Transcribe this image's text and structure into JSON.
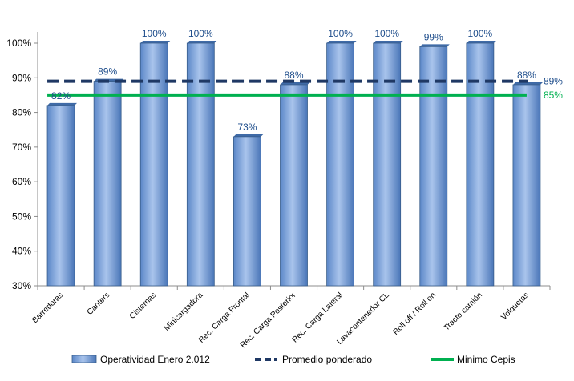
{
  "chart_data": {
    "type": "bar",
    "categories": [
      "Barredoras",
      "Canters",
      "Cisternas",
      "Minicargadora",
      "Rec. Carga Frontal",
      "Rec. Carga Posterior",
      "Rec. Carga Lateral",
      "Lavacontenedor CL",
      "Roll off / Roll on",
      "Tracto camión",
      "Volquetas"
    ],
    "series": [
      {
        "name": "Operatividad Enero 2.012",
        "type": "bar",
        "values": [
          82,
          89,
          100,
          100,
          73,
          88,
          100,
          100,
          99,
          100,
          88
        ],
        "color": "#4f81bd"
      },
      {
        "name": "Promedio ponderado",
        "type": "line",
        "style": "dashed",
        "value": 89,
        "color": "#1f3864"
      },
      {
        "name": "Minimo Cepis",
        "type": "line",
        "style": "solid",
        "value": 85,
        "color": "#00b050"
      }
    ],
    "data_labels": [
      "82%",
      "89%",
      "100%",
      "100%",
      "73%",
      "88%",
      "100%",
      "100%",
      "99%",
      "100%",
      "88%"
    ],
    "line_labels": {
      "promedio": "89%",
      "minimo": "85%"
    },
    "y_ticks": [
      "30%",
      "40%",
      "50%",
      "60%",
      "70%",
      "80%",
      "90%",
      "100%"
    ],
    "ylim": [
      30,
      100
    ],
    "y_tick_values": [
      30,
      40,
      50,
      60,
      70,
      80,
      90,
      100
    ],
    "title": "",
    "xlabel": "",
    "ylabel": "",
    "grid": false,
    "legend_position": "bottom"
  }
}
